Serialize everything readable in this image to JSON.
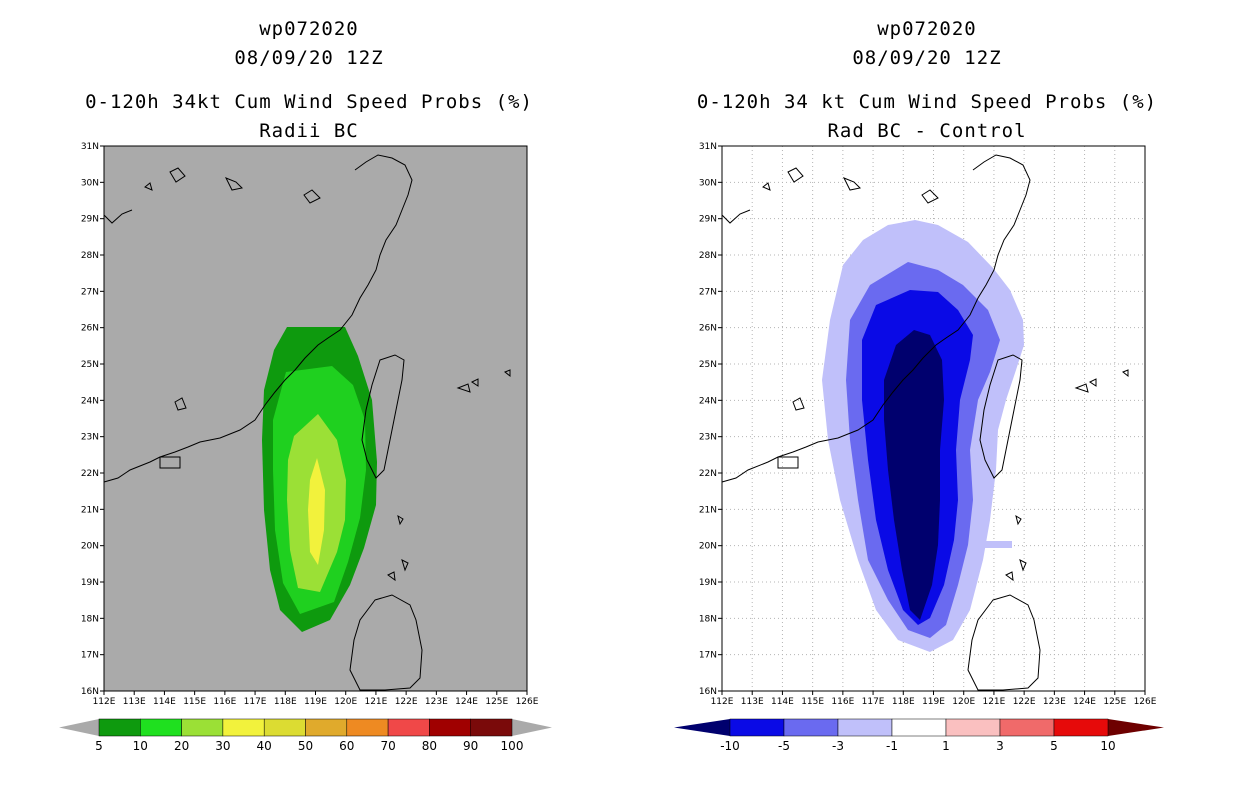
{
  "left": {
    "title1": "wp072020",
    "title2": "08/09/20 12Z",
    "title3": "0-120h 34kt Cum Wind Speed Probs (%)",
    "title4": "Radii BC",
    "lat_labels": [
      "31N",
      "30N",
      "29N",
      "28N",
      "27N",
      "26N",
      "25N",
      "24N",
      "23N",
      "22N",
      "21N",
      "20N",
      "19N",
      "18N",
      "17N",
      "16N"
    ],
    "lon_labels": [
      "112E",
      "113E",
      "114E",
      "115E",
      "116E",
      "117E",
      "118E",
      "119E",
      "120E",
      "121E",
      "122E",
      "123E",
      "124E",
      "125E",
      "126E"
    ],
    "colorbar": {
      "labels": [
        "5",
        "10",
        "20",
        "30",
        "40",
        "50",
        "60",
        "70",
        "80",
        "90",
        "100"
      ],
      "colors": [
        "#0e9a0e",
        "#1fe01f",
        "#9be036",
        "#f2f23c",
        "#dcdc32",
        "#e0aa2c",
        "#ee8a22",
        "#f04848",
        "#a00000",
        "#7a0a0a",
        "#8a1ee6"
      ]
    },
    "colors": {
      "background": "#aaaaaa",
      "g1": "#0e9a0e",
      "g2": "#1fd01f",
      "g3": "#9be036",
      "g4": "#f2f23c"
    }
  },
  "right": {
    "title1": "wp072020",
    "title2": "08/09/20 12Z",
    "title3": "0-120h 34 kt Cum Wind Speed Probs (%)",
    "title4": "Rad BC - Control",
    "lat_labels": [
      "31N",
      "30N",
      "29N",
      "28N",
      "27N",
      "26N",
      "25N",
      "24N",
      "23N",
      "22N",
      "21N",
      "20N",
      "19N",
      "18N",
      "17N",
      "16N"
    ],
    "lon_labels": [
      "112E",
      "113E",
      "114E",
      "115E",
      "116E",
      "117E",
      "118E",
      "119E",
      "120E",
      "121E",
      "122E",
      "123E",
      "124E",
      "125E",
      "126E"
    ],
    "colorbar": {
      "labels": [
        "-10",
        "-5",
        "-3",
        "-1",
        "1",
        "3",
        "5",
        "10"
      ],
      "colors": [
        "#00006e",
        "#0a0ae6",
        "#6a6af0",
        "#c0c0fa",
        "#ffffff",
        "#fac0c0",
        "#f06a6a",
        "#e60a0a",
        "#6e0000"
      ]
    },
    "colors": {
      "c1": "#c0c0fa",
      "c2": "#6a6af0",
      "c3": "#0a0ae6",
      "c4": "#00006e"
    }
  }
}
